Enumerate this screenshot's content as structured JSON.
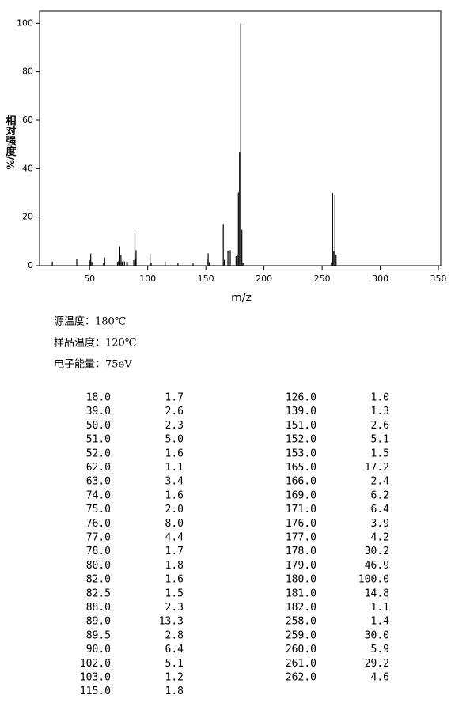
{
  "chart_data": {
    "type": "bar",
    "x_label": "m/z",
    "y_label": "相对强度/%",
    "x": [
      18,
      39,
      50,
      51,
      52,
      62,
      63,
      74,
      75,
      76,
      77,
      78,
      80,
      82,
      82.5,
      88,
      89,
      89.5,
      90,
      102,
      103,
      115,
      126,
      139,
      151,
      152,
      153,
      165,
      166,
      169,
      171,
      176,
      177,
      178,
      179,
      180,
      181,
      182,
      258,
      259,
      260,
      261,
      262
    ],
    "values": [
      1.7,
      2.6,
      2.3,
      5.0,
      1.6,
      1.1,
      3.4,
      1.6,
      2.0,
      8.0,
      4.4,
      1.7,
      1.8,
      1.6,
      1.5,
      2.3,
      13.3,
      2.8,
      6.4,
      5.1,
      1.2,
      1.8,
      1.0,
      1.3,
      2.6,
      5.1,
      1.5,
      17.2,
      2.4,
      6.2,
      6.4,
      3.9,
      4.2,
      30.2,
      46.9,
      100,
      14.8,
      1.1,
      1.4,
      30.0,
      5.9,
      29.2,
      4.6
    ],
    "color": "#000000",
    "xlim": [
      7,
      352
    ],
    "ylim": [
      0,
      105
    ],
    "xticks": [
      50,
      100,
      150,
      200,
      250,
      300,
      350
    ],
    "yticks": [
      0,
      20,
      40,
      60,
      80,
      100
    ]
  },
  "conditions": [
    "源温度：180℃",
    "样品温度：120℃",
    "电子能量：75eV"
  ],
  "table": {
    "left": [
      [
        "18.0",
        "1.7"
      ],
      [
        "39.0",
        "2.6"
      ],
      [
        "50.0",
        "2.3"
      ],
      [
        "51.0",
        "5.0"
      ],
      [
        "52.0",
        "1.6"
      ],
      [
        "62.0",
        "1.1"
      ],
      [
        "63.0",
        "3.4"
      ],
      [
        "74.0",
        "1.6"
      ],
      [
        "75.0",
        "2.0"
      ],
      [
        "76.0",
        "8.0"
      ],
      [
        "77.0",
        "4.4"
      ],
      [
        "78.0",
        "1.7"
      ],
      [
        "80.0",
        "1.8"
      ],
      [
        "82.0",
        "1.6"
      ],
      [
        "82.5",
        "1.5"
      ],
      [
        "88.0",
        "2.3"
      ],
      [
        "89.0",
        "13.3"
      ],
      [
        "89.5",
        "2.8"
      ],
      [
        "90.0",
        "6.4"
      ],
      [
        "102.0",
        "5.1"
      ],
      [
        "103.0",
        "1.2"
      ],
      [
        "115.0",
        "1.8"
      ]
    ],
    "right": [
      [
        "126.0",
        "1.0"
      ],
      [
        "139.0",
        "1.3"
      ],
      [
        "151.0",
        "2.6"
      ],
      [
        "152.0",
        "5.1"
      ],
      [
        "153.0",
        "1.5"
      ],
      [
        "165.0",
        "17.2"
      ],
      [
        "166.0",
        "2.4"
      ],
      [
        "169.0",
        "6.2"
      ],
      [
        "171.0",
        "6.4"
      ],
      [
        "176.0",
        "3.9"
      ],
      [
        "177.0",
        "4.2"
      ],
      [
        "178.0",
        "30.2"
      ],
      [
        "179.0",
        "46.9"
      ],
      [
        "180.0",
        "100.0"
      ],
      [
        "181.0",
        "14.8"
      ],
      [
        "182.0",
        "1.1"
      ],
      [
        "258.0",
        "1.4"
      ],
      [
        "259.0",
        "30.0"
      ],
      [
        "260.0",
        "5.9"
      ],
      [
        "261.0",
        "29.2"
      ],
      [
        "262.0",
        "4.6"
      ]
    ]
  }
}
